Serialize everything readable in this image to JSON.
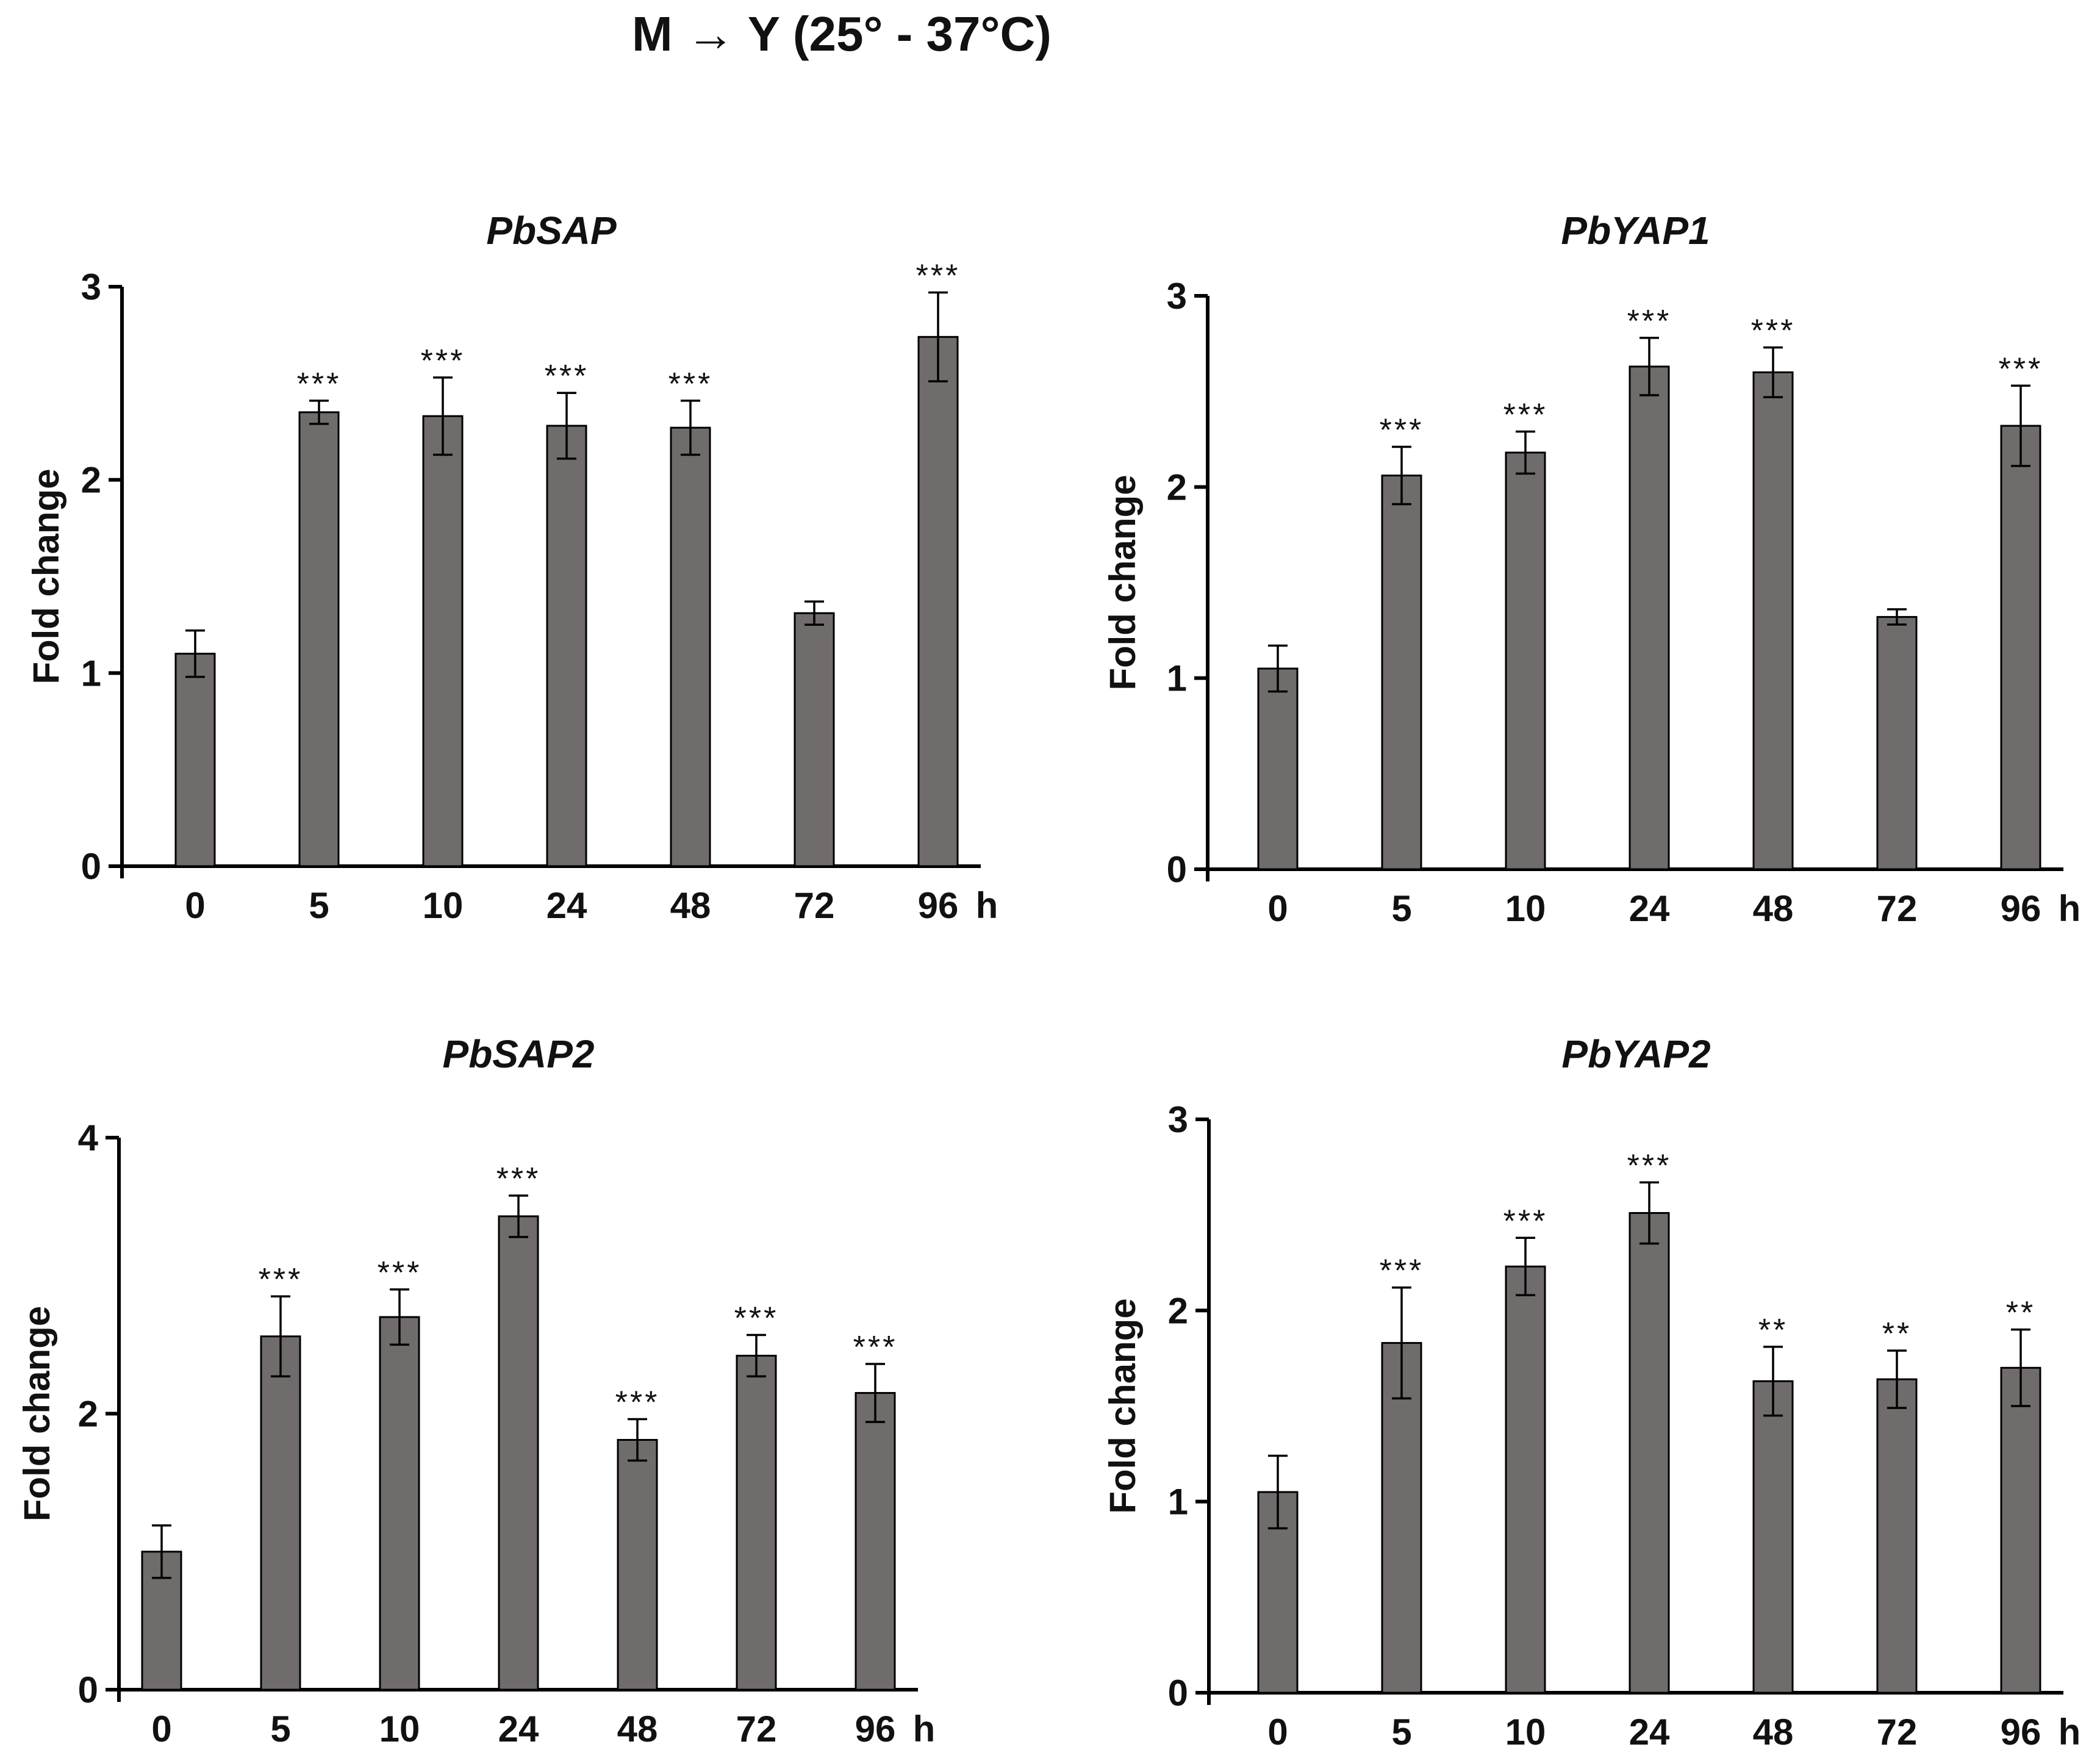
{
  "figure_title": "M → Y (25° - 37°C)",
  "colors": {
    "bar": "#716c6c",
    "axis": "#000000"
  },
  "chart_data": [
    {
      "type": "bar",
      "title": "PbSAP",
      "ylabel": "Fold change",
      "x_unit": "h",
      "categories": [
        "0",
        "5",
        "10",
        "24",
        "48",
        "72",
        "96"
      ],
      "values": [
        1.1,
        2.35,
        2.33,
        2.28,
        2.27,
        1.31,
        2.74
      ],
      "errors": [
        0.12,
        0.06,
        0.2,
        0.17,
        0.14,
        0.06,
        0.23
      ],
      "significance": [
        "",
        "***",
        "***",
        "***",
        "***",
        "",
        "***"
      ],
      "ylim": [
        0,
        3
      ],
      "yticks": [
        "0",
        "1",
        "2",
        "3"
      ]
    },
    {
      "type": "bar",
      "title": "PbYAP1",
      "ylabel": "Fold change",
      "x_unit": "h",
      "categories": [
        "0",
        "5",
        "10",
        "24",
        "48",
        "72",
        "96"
      ],
      "values": [
        1.05,
        2.06,
        2.18,
        2.63,
        2.6,
        1.32,
        2.32
      ],
      "errors": [
        0.12,
        0.15,
        0.11,
        0.15,
        0.13,
        0.04,
        0.21
      ],
      "significance": [
        "",
        "***",
        "***",
        "***",
        "***",
        "",
        "***"
      ],
      "ylim": [
        0,
        3
      ],
      "yticks": [
        "0",
        "1",
        "2",
        "3"
      ]
    },
    {
      "type": "bar",
      "title": "PbSAP2",
      "ylabel": "Fold change",
      "x_unit": "h",
      "categories": [
        "0",
        "5",
        "10",
        "24",
        "48",
        "72",
        "96"
      ],
      "values": [
        1.0,
        2.56,
        2.7,
        3.43,
        1.81,
        2.42,
        2.15
      ],
      "errors": [
        0.19,
        0.29,
        0.2,
        0.15,
        0.15,
        0.15,
        0.21
      ],
      "significance": [
        "",
        "***",
        "***",
        "***",
        "***",
        "***",
        "***"
      ],
      "ylim": [
        0,
        4
      ],
      "yticks": [
        "0",
        "2",
        "4"
      ]
    },
    {
      "type": "bar",
      "title": "PbYAP2",
      "ylabel": "Fold change",
      "x_unit": "h",
      "categories": [
        "0",
        "5",
        "10",
        "24",
        "48",
        "72",
        "96"
      ],
      "values": [
        1.05,
        1.83,
        2.23,
        2.51,
        1.63,
        1.64,
        1.7
      ],
      "errors": [
        0.19,
        0.29,
        0.15,
        0.16,
        0.18,
        0.15,
        0.2
      ],
      "significance": [
        "",
        "***",
        "***",
        "***",
        "**",
        "**",
        "**"
      ],
      "ylim": [
        0,
        3
      ],
      "yticks": [
        "0",
        "1",
        "2",
        "3"
      ]
    }
  ]
}
